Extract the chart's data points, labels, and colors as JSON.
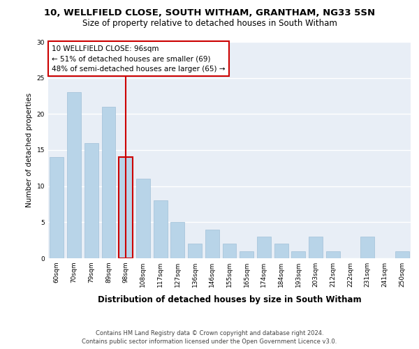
{
  "title1": "10, WELLFIELD CLOSE, SOUTH WITHAM, GRANTHAM, NG33 5SN",
  "title2": "Size of property relative to detached houses in South Witham",
  "xlabel": "Distribution of detached houses by size in South Witham",
  "ylabel": "Number of detached properties",
  "categories": [
    "60sqm",
    "70sqm",
    "79sqm",
    "89sqm",
    "98sqm",
    "108sqm",
    "117sqm",
    "127sqm",
    "136sqm",
    "146sqm",
    "155sqm",
    "165sqm",
    "174sqm",
    "184sqm",
    "193sqm",
    "203sqm",
    "212sqm",
    "222sqm",
    "231sqm",
    "241sqm",
    "250sqm"
  ],
  "values": [
    14,
    23,
    16,
    21,
    14,
    11,
    8,
    5,
    2,
    4,
    2,
    1,
    3,
    2,
    1,
    3,
    1,
    0,
    3,
    0,
    1
  ],
  "bar_color": "#b8d4e8",
  "bar_edge_color": "#a0c0d8",
  "highlight_bar_index": 4,
  "highlight_line_color": "#cc0000",
  "ylim": [
    0,
    30
  ],
  "yticks": [
    0,
    5,
    10,
    15,
    20,
    25,
    30
  ],
  "annotation_line1": "10 WELLFIELD CLOSE: 96sqm",
  "annotation_line2": "← 51% of detached houses are smaller (69)",
  "annotation_line3": "48% of semi-detached houses are larger (65) →",
  "footer1": "Contains HM Land Registry data © Crown copyright and database right 2024.",
  "footer2": "Contains public sector information licensed under the Open Government Licence v3.0.",
  "background_color": "#e8eef6",
  "grid_color": "#ffffff",
  "title1_fontsize": 9.5,
  "title2_fontsize": 8.5,
  "xlabel_fontsize": 8.5,
  "ylabel_fontsize": 7.5,
  "tick_fontsize": 6.5,
  "annotation_fontsize": 7.5,
  "footer_fontsize": 6.0
}
